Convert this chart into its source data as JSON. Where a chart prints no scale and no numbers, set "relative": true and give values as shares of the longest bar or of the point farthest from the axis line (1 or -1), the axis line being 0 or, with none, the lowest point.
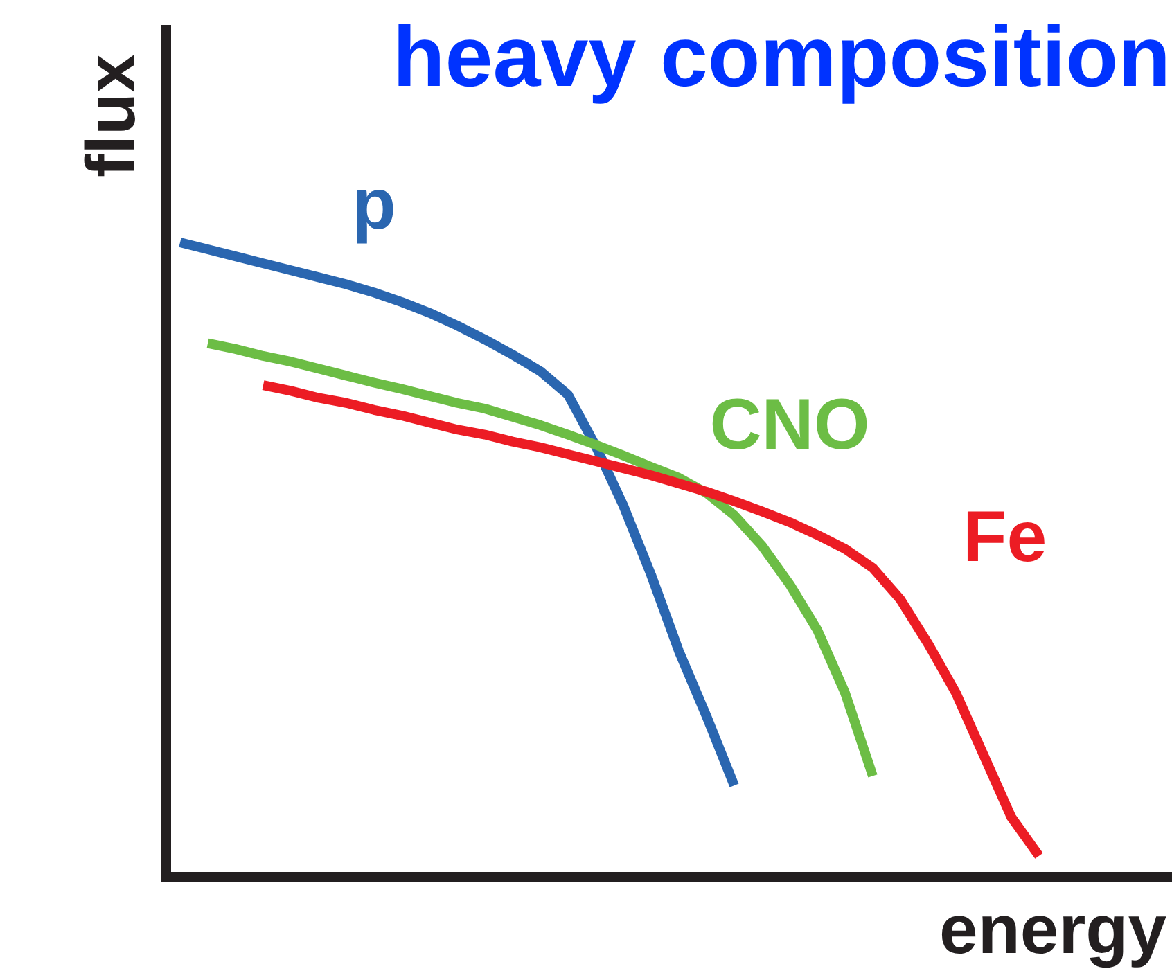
{
  "chart_data": {
    "type": "line",
    "relative": true,
    "title": "heavy composition",
    "xlabel": "energy",
    "ylabel": "flux",
    "legend": false,
    "grid": false,
    "marker": "none",
    "line_style": "solid",
    "categories": [
      null,
      null,
      null,
      null,
      null,
      null,
      null,
      null,
      null,
      null,
      null,
      null,
      null,
      null,
      null,
      null,
      null,
      null,
      null,
      null,
      null,
      null,
      null,
      null,
      null,
      null,
      null,
      null,
      null,
      null,
      null,
      null
    ],
    "series": [
      {
        "name": "p",
        "color": "#2a66b0",
        "values": [
          1.0,
          0.989,
          0.978,
          0.967,
          0.956,
          0.945,
          0.934,
          0.921,
          0.906,
          0.889,
          0.869,
          0.847,
          0.823,
          0.797,
          0.76,
          0.679,
          0.585,
          0.476,
          0.356,
          0.253,
          0.144,
          null,
          null,
          null,
          null,
          null,
          null,
          null,
          null,
          null,
          null,
          null
        ]
      },
      {
        "name": "CNO",
        "color": "#6cbd45",
        "values": [
          null,
          0.841,
          0.832,
          0.821,
          0.812,
          0.801,
          0.79,
          0.779,
          0.769,
          0.758,
          0.747,
          0.738,
          0.725,
          0.712,
          0.697,
          0.681,
          0.664,
          0.646,
          0.629,
          0.605,
          0.57,
          0.522,
          0.461,
          0.389,
          0.29,
          0.159,
          null,
          null,
          null,
          null,
          null,
          null
        ]
      },
      {
        "name": "Fe",
        "color": "#ec1c24",
        "values": [
          null,
          null,
          null,
          0.775,
          0.766,
          0.755,
          0.747,
          0.736,
          0.727,
          0.716,
          0.705,
          0.697,
          0.686,
          0.677,
          0.666,
          0.655,
          0.644,
          0.633,
          0.62,
          0.607,
          0.592,
          0.576,
          0.559,
          0.539,
          0.517,
          0.487,
          0.437,
          0.367,
          0.29,
          0.192,
          0.094,
          0.033
        ]
      }
    ]
  }
}
